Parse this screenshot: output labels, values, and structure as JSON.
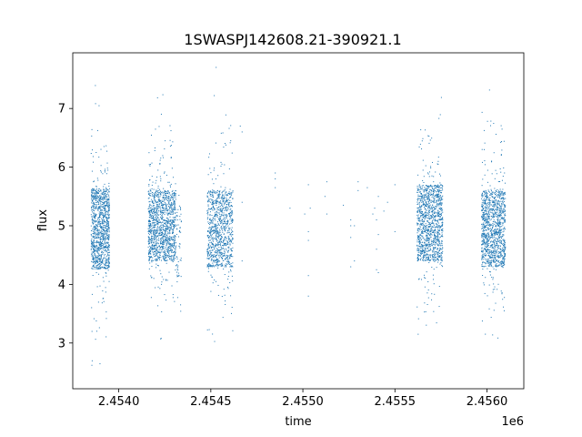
{
  "chart_data": {
    "type": "scatter",
    "title": "1SWASPJ142608.21-390921.1",
    "xlabel": "time",
    "ylabel": "flux",
    "x_offset_label": "1e6",
    "xlim": [
      2.45375,
      2.4562
    ],
    "ylim": [
      2.22,
      7.95
    ],
    "grid": false,
    "legend": "none",
    "x_ticks": [
      2.454,
      2.4545,
      2.455,
      2.4555,
      2.456
    ],
    "x_tick_labels": [
      "2.4540",
      "2.4545",
      "2.4550",
      "2.4555",
      "2.4560"
    ],
    "y_ticks": [
      3,
      4,
      5,
      6,
      7
    ],
    "y_tick_labels": [
      "3",
      "4",
      "5",
      "6",
      "7"
    ],
    "point_color": "#1f77b4",
    "series": [
      {
        "segments": [
          {
            "x_range": [
              2.45385,
              2.45395
            ],
            "center": 4.95,
            "spread": 0.55,
            "count": 1100
          },
          {
            "x_range": [
              2.45416,
              2.45431
            ],
            "center": 5.0,
            "spread": 0.48,
            "count": 1300
          },
          {
            "x_range": [
              2.45431,
              2.45434
            ],
            "center": 4.7,
            "spread": 0.5,
            "count": 60
          },
          {
            "x_range": [
              2.45448,
              2.45462
            ],
            "center": 4.95,
            "spread": 0.52,
            "count": 1000
          },
          {
            "x_range": [
              2.45562,
              2.45576
            ],
            "center": 5.05,
            "spread": 0.52,
            "count": 1200
          },
          {
            "x_range": [
              2.45597,
              2.4561
            ],
            "center": 4.95,
            "spread": 0.52,
            "count": 1200
          }
        ],
        "sparse_points": [
          [
            2.45466,
            6.7
          ],
          [
            2.45467,
            6.6
          ],
          [
            2.45467,
            5.4
          ],
          [
            2.45467,
            4.4
          ],
          [
            2.45485,
            5.8
          ],
          [
            2.45485,
            5.65
          ],
          [
            2.45493,
            5.3
          ],
          [
            2.45503,
            5.7
          ],
          [
            2.45504,
            5.3
          ],
          [
            2.45503,
            4.75
          ],
          [
            2.45513,
            5.75
          ],
          [
            2.45513,
            5.2
          ],
          [
            2.45526,
            5.1
          ],
          [
            2.45526,
            5.0
          ],
          [
            2.45526,
            4.8
          ],
          [
            2.4553,
            5.75
          ],
          [
            2.4553,
            5.6
          ],
          [
            2.45528,
            5.0
          ],
          [
            2.45528,
            4.4
          ],
          [
            2.45535,
            5.65
          ],
          [
            2.45539,
            5.3
          ],
          [
            2.4554,
            5.1
          ],
          [
            2.4554,
            4.6
          ],
          [
            2.4554,
            4.25
          ],
          [
            2.45541,
            5.5
          ],
          [
            2.45546,
            5.4
          ],
          [
            2.4555,
            5.7
          ],
          [
            2.4555,
            4.9
          ],
          [
            2.45538,
            5.2
          ],
          [
            2.45522,
            5.35
          ],
          [
            2.45544,
            5.25
          ],
          [
            2.45485,
            5.9
          ],
          [
            2.45501,
            5.2
          ],
          [
            2.45503,
            4.9
          ],
          [
            2.45503,
            4.15
          ],
          [
            2.45503,
            3.8
          ],
          [
            2.45526,
            4.3
          ],
          [
            2.45541,
            4.2
          ],
          [
            2.45541,
            4.85
          ],
          [
            2.45512,
            5.5
          ]
        ]
      }
    ]
  }
}
